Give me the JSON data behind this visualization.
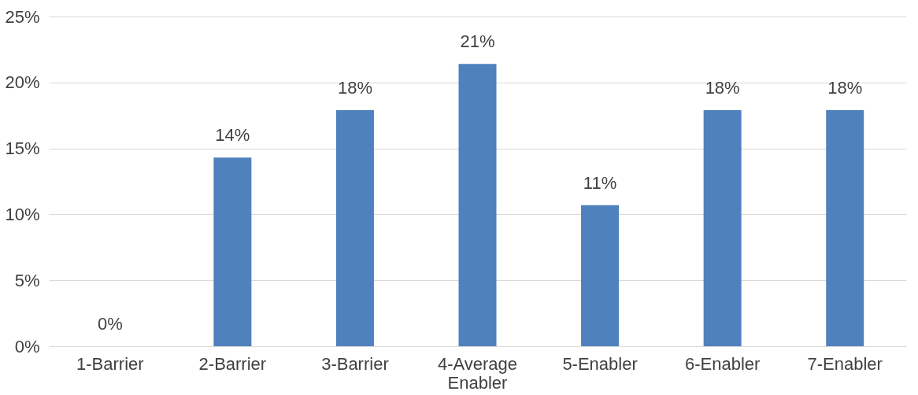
{
  "chart_data": {
    "type": "bar",
    "categories": [
      "1-Barrier",
      "2-Barrier",
      "3-Barrier",
      "4-Average Enabler",
      "5-Enabler",
      "6-Enabler",
      "7-Enabler"
    ],
    "values": [
      0,
      14.3,
      17.9,
      21.4,
      10.7,
      17.9,
      17.9
    ],
    "value_labels": [
      "0%",
      "14%",
      "18%",
      "21%",
      "11%",
      "18%",
      "18%"
    ],
    "color": "#4f81bd",
    "ylim": [
      0,
      25
    ],
    "yticks": [
      {
        "value": 0,
        "label": "0%"
      },
      {
        "value": 5,
        "label": "5%"
      },
      {
        "value": 10,
        "label": "10%"
      },
      {
        "value": 15,
        "label": "15%"
      },
      {
        "value": 20,
        "label": "20%"
      },
      {
        "value": 25,
        "label": "25%"
      }
    ],
    "grid": "y"
  }
}
